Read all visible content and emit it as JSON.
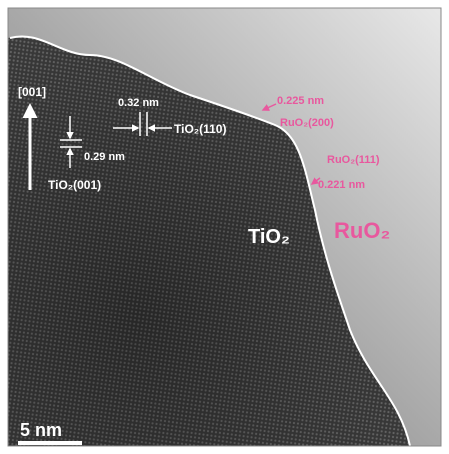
{
  "labels": {
    "direction": "[001]",
    "spacing_110": "0.32 nm",
    "plane_110": "TiO₂(110)",
    "spacing_001": "0.29 nm",
    "plane_001": "TiO₂(001)",
    "spacing_200": "0.225 nm",
    "plane_200": "RuO₂(200)",
    "plane_111": "RuO₂(111)",
    "spacing_111": "0.221 nm",
    "region_tio2": "TiO₂",
    "region_ruo2": "RuO₂",
    "scale_bar": "5 nm"
  }
}
